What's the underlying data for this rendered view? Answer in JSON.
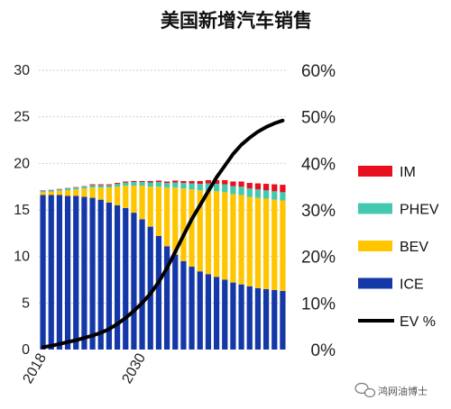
{
  "chart_data": {
    "type": "bar",
    "title": "美国新增汽车销售",
    "x": [
      2018,
      2019,
      2020,
      2021,
      2022,
      2023,
      2024,
      2025,
      2026,
      2027,
      2028,
      2029,
      2030,
      2031,
      2032,
      2033,
      2034,
      2035,
      2036,
      2037,
      2038,
      2039,
      2040,
      2041,
      2042,
      2043,
      2044,
      2045,
      2046,
      2047
    ],
    "x_tick_labels": [
      "2018",
      "2030"
    ],
    "y_ticks": [
      "0",
      "5",
      "10",
      "15",
      "20",
      "25",
      "30"
    ],
    "y2_ticks": [
      "0%",
      "10%",
      "20%",
      "30%",
      "40%",
      "50%",
      "60%"
    ],
    "ylim": [
      0,
      30
    ],
    "y2lim": [
      0,
      0.6
    ],
    "stacked": true,
    "grid": true,
    "legend_position": "right",
    "series": [
      {
        "name": "ICE",
        "color": "#1538A8",
        "axis": "left",
        "values": [
          16.6,
          16.6,
          16.6,
          16.5,
          16.5,
          16.4,
          16.3,
          16.1,
          15.8,
          15.5,
          15.2,
          14.7,
          14.0,
          13.2,
          12.2,
          11.1,
          10.2,
          9.5,
          8.9,
          8.4,
          8.1,
          7.8,
          7.5,
          7.2,
          7.0,
          6.8,
          6.6,
          6.5,
          6.4,
          6.3
        ]
      },
      {
        "name": "BEV",
        "color": "#FFC600",
        "axis": "left",
        "values": [
          0.3,
          0.35,
          0.45,
          0.6,
          0.7,
          0.9,
          1.1,
          1.3,
          1.6,
          2.0,
          2.4,
          2.9,
          3.6,
          4.3,
          5.3,
          6.3,
          7.2,
          7.8,
          8.3,
          8.7,
          9.0,
          9.2,
          9.4,
          9.5,
          9.6,
          9.6,
          9.7,
          9.7,
          9.7,
          9.7
        ]
      },
      {
        "name": "PHEV",
        "color": "#45C8B0",
        "axis": "left",
        "values": [
          0.15,
          0.15,
          0.15,
          0.2,
          0.2,
          0.2,
          0.25,
          0.25,
          0.25,
          0.3,
          0.35,
          0.4,
          0.4,
          0.45,
          0.5,
          0.5,
          0.55,
          0.6,
          0.65,
          0.7,
          0.75,
          0.8,
          0.85,
          0.85,
          0.9,
          0.9,
          0.9,
          0.9,
          0.9,
          0.9
        ]
      },
      {
        "name": "IM",
        "color": "#E8101E",
        "axis": "left",
        "values": [
          0.05,
          0.05,
          0.05,
          0.05,
          0.05,
          0.05,
          0.1,
          0.1,
          0.1,
          0.1,
          0.1,
          0.1,
          0.1,
          0.15,
          0.15,
          0.15,
          0.2,
          0.2,
          0.25,
          0.3,
          0.35,
          0.4,
          0.45,
          0.5,
          0.55,
          0.6,
          0.65,
          0.7,
          0.75,
          0.8
        ]
      },
      {
        "name": "EV %",
        "color": "#000000",
        "type": "line",
        "axis": "right",
        "values": [
          0.005,
          0.008,
          0.012,
          0.016,
          0.02,
          0.025,
          0.03,
          0.036,
          0.044,
          0.055,
          0.068,
          0.083,
          0.1,
          0.12,
          0.145,
          0.175,
          0.21,
          0.245,
          0.28,
          0.31,
          0.34,
          0.37,
          0.395,
          0.42,
          0.44,
          0.455,
          0.468,
          0.478,
          0.486,
          0.492
        ]
      }
    ],
    "legend_order": [
      "IM",
      "PHEV",
      "BEV",
      "ICE",
      "EV %"
    ]
  },
  "watermark": {
    "text": "鸿网油博士",
    "icon": "wechat-icon"
  }
}
